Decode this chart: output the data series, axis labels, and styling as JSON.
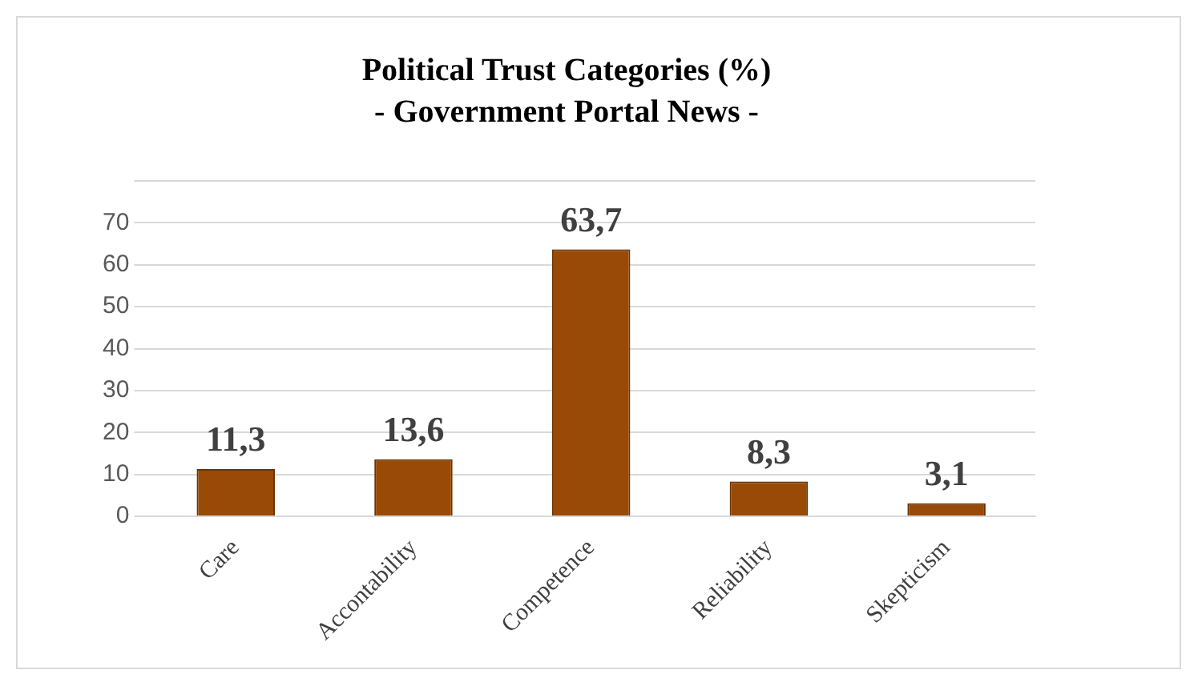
{
  "chart_data": {
    "type": "bar",
    "title": "Political Trust Categories (%)",
    "subtitle": "- Government Portal News -",
    "categories": [
      "Care",
      "Accontability",
      "Competence",
      "Reliability",
      "Skepticism"
    ],
    "values": [
      11.3,
      13.6,
      63.7,
      8.3,
      3.1
    ],
    "value_labels": [
      "11,3",
      "13,6",
      "63,7",
      "8,3",
      "3,1"
    ],
    "color": "#994a06",
    "ylim": [
      0,
      80
    ],
    "yticks": [
      0,
      10,
      20,
      30,
      40,
      50,
      60,
      70,
      {
        "value": 80,
        "label": null
      }
    ],
    "grid": "y",
    "legend": false
  }
}
